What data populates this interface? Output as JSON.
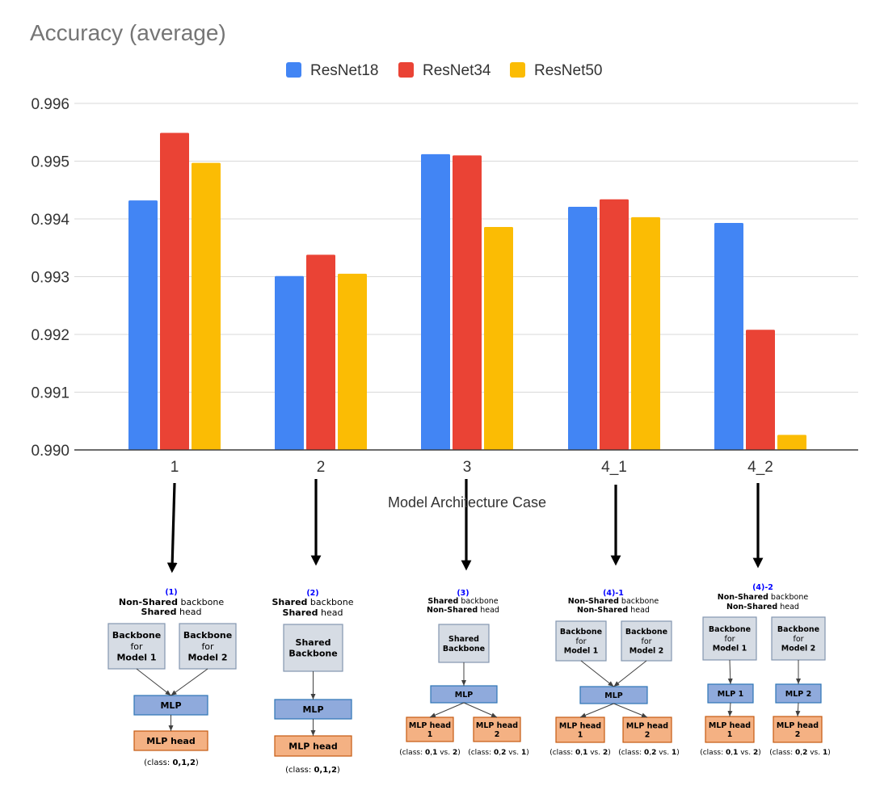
{
  "chart_data": {
    "type": "bar",
    "title": "Accuracy (average)",
    "xlabel": "Model Architecture Case",
    "ylabel": "",
    "categories": [
      "1",
      "2",
      "3",
      "4_1",
      "4_2"
    ],
    "ylim": [
      0.99,
      0.996
    ],
    "yticks": [
      "0.990",
      "0.991",
      "0.992",
      "0.993",
      "0.994",
      "0.995",
      "0.996"
    ],
    "grid": true,
    "legend_position": "top-center",
    "series": [
      {
        "name": "ResNet18",
        "color": "#4285F4",
        "values": [
          0.99432,
          0.99301,
          0.99512,
          0.99421,
          0.99393
        ]
      },
      {
        "name": "ResNet34",
        "color": "#EA4335",
        "values": [
          0.99549,
          0.99338,
          0.9951,
          0.99434,
          0.99208
        ]
      },
      {
        "name": "ResNet50",
        "color": "#FBBC04",
        "values": [
          0.99497,
          0.99305,
          0.99386,
          0.99403,
          0.99026
        ]
      }
    ]
  },
  "diagrams": [
    {
      "case_label": "(1)",
      "backbone_line": [
        {
          "text": "Non-Shared",
          "bold": true
        },
        {
          "text": " backbone",
          "bold": false
        }
      ],
      "head_line": [
        {
          "text": "Shared",
          "bold": true
        },
        {
          "text": " head",
          "bold": false
        }
      ],
      "backbones": [
        {
          "lines": [
            {
              "text": "Backbone",
              "bold": true
            },
            {
              "text": "for",
              "bold": false
            },
            {
              "text": "Model 1",
              "bold": true
            }
          ]
        },
        {
          "lines": [
            {
              "text": "Backbone",
              "bold": true
            },
            {
              "text": "for",
              "bold": false
            },
            {
              "text": "Model 2",
              "bold": true
            }
          ]
        }
      ],
      "mlps": [
        "MLP"
      ],
      "heads": [
        {
          "lines": [
            "MLP head"
          ]
        }
      ],
      "classes": [
        [
          {
            "text": "(class: ",
            "bold": false
          },
          {
            "text": "0,1,2",
            "bold": true
          },
          {
            "text": ")",
            "bold": false
          }
        ]
      ]
    },
    {
      "case_label": "(2)",
      "backbone_line": [
        {
          "text": "Shared",
          "bold": true
        },
        {
          "text": " backbone",
          "bold": false
        }
      ],
      "head_line": [
        {
          "text": "Shared",
          "bold": true
        },
        {
          "text": " head",
          "bold": false
        }
      ],
      "backbones": [
        {
          "lines": [
            {
              "text": "Shared",
              "bold": true
            },
            {
              "text": "Backbone",
              "bold": true
            }
          ]
        }
      ],
      "mlps": [
        "MLP"
      ],
      "heads": [
        {
          "lines": [
            "MLP head"
          ]
        }
      ],
      "classes": [
        [
          {
            "text": "(class: ",
            "bold": false
          },
          {
            "text": "0,1,2",
            "bold": true
          },
          {
            "text": ")",
            "bold": false
          }
        ]
      ]
    },
    {
      "case_label": "(3)",
      "backbone_line": [
        {
          "text": "Shared",
          "bold": true
        },
        {
          "text": " backbone",
          "bold": false
        }
      ],
      "head_line": [
        {
          "text": "Non-Shared",
          "bold": true
        },
        {
          "text": " head",
          "bold": false
        }
      ],
      "backbones": [
        {
          "lines": [
            {
              "text": "Shared",
              "bold": true
            },
            {
              "text": "Backbone",
              "bold": true
            }
          ]
        }
      ],
      "mlps": [
        "MLP"
      ],
      "heads": [
        {
          "lines": [
            "MLP head",
            "1"
          ]
        },
        {
          "lines": [
            "MLP head",
            "2"
          ]
        }
      ],
      "classes": [
        [
          {
            "text": "(class: ",
            "bold": false
          },
          {
            "text": "0",
            "bold": true
          },
          {
            "text": ",",
            "bold": false
          },
          {
            "text": "1",
            "bold": true
          },
          {
            "text": " vs. ",
            "bold": false
          },
          {
            "text": "2",
            "bold": true
          },
          {
            "text": ")",
            "bold": false
          }
        ],
        [
          {
            "text": "(class: ",
            "bold": false
          },
          {
            "text": "0",
            "bold": true
          },
          {
            "text": ",",
            "bold": false
          },
          {
            "text": "2",
            "bold": true
          },
          {
            "text": " vs. ",
            "bold": false
          },
          {
            "text": "1",
            "bold": true
          },
          {
            "text": ")",
            "bold": false
          }
        ]
      ]
    },
    {
      "case_label": "(4)-1",
      "backbone_line": [
        {
          "text": "Non-Shared",
          "bold": true
        },
        {
          "text": " backbone",
          "bold": false
        }
      ],
      "head_line": [
        {
          "text": "Non-Shared",
          "bold": true
        },
        {
          "text": " head",
          "bold": false
        }
      ],
      "backbones": [
        {
          "lines": [
            {
              "text": "Backbone",
              "bold": true
            },
            {
              "text": "for",
              "bold": false
            },
            {
              "text": "Model 1",
              "bold": true
            }
          ]
        },
        {
          "lines": [
            {
              "text": "Backbone",
              "bold": true
            },
            {
              "text": "for",
              "bold": false
            },
            {
              "text": "Model 2",
              "bold": true
            }
          ]
        }
      ],
      "mlps": [
        "MLP"
      ],
      "heads": [
        {
          "lines": [
            "MLP head",
            "1"
          ]
        },
        {
          "lines": [
            "MLP head",
            "2"
          ]
        }
      ],
      "classes": [
        [
          {
            "text": "(class: ",
            "bold": false
          },
          {
            "text": "0",
            "bold": true
          },
          {
            "text": ",",
            "bold": false
          },
          {
            "text": "1",
            "bold": true
          },
          {
            "text": " vs. ",
            "bold": false
          },
          {
            "text": "2",
            "bold": true
          },
          {
            "text": ")",
            "bold": false
          }
        ],
        [
          {
            "text": "(class: ",
            "bold": false
          },
          {
            "text": "0",
            "bold": true
          },
          {
            "text": ",",
            "bold": false
          },
          {
            "text": "2",
            "bold": true
          },
          {
            "text": " vs. ",
            "bold": false
          },
          {
            "text": "1",
            "bold": true
          },
          {
            "text": ")",
            "bold": false
          }
        ]
      ]
    },
    {
      "case_label": "(4)-2",
      "backbone_line": [
        {
          "text": "Non-Shared",
          "bold": true
        },
        {
          "text": " backbone",
          "bold": false
        }
      ],
      "head_line": [
        {
          "text": "Non-Shared",
          "bold": true
        },
        {
          "text": " head",
          "bold": false
        }
      ],
      "backbones": [
        {
          "lines": [
            {
              "text": "Backbone",
              "bold": true
            },
            {
              "text": "for",
              "bold": false
            },
            {
              "text": "Model 1",
              "bold": true
            }
          ]
        },
        {
          "lines": [
            {
              "text": "Backbone",
              "bold": true
            },
            {
              "text": "for",
              "bold": false
            },
            {
              "text": "Model 2",
              "bold": true
            }
          ]
        }
      ],
      "mlps": [
        "MLP 1",
        "MLP 2"
      ],
      "heads": [
        {
          "lines": [
            "MLP head",
            "1"
          ]
        },
        {
          "lines": [
            "MLP head",
            "2"
          ]
        }
      ],
      "classes": [
        [
          {
            "text": "(class: ",
            "bold": false
          },
          {
            "text": "0",
            "bold": true
          },
          {
            "text": ",",
            "bold": false
          },
          {
            "text": "1",
            "bold": true
          },
          {
            "text": " vs. ",
            "bold": false
          },
          {
            "text": "2",
            "bold": true
          },
          {
            "text": ")",
            "bold": false
          }
        ],
        [
          {
            "text": "(class: ",
            "bold": false
          },
          {
            "text": "0",
            "bold": true
          },
          {
            "text": ",",
            "bold": false
          },
          {
            "text": "2",
            "bold": true
          },
          {
            "text": " vs. ",
            "bold": false
          },
          {
            "text": "1",
            "bold": true
          },
          {
            "text": ")",
            "bold": false
          }
        ]
      ]
    }
  ],
  "colors": {
    "backbone_fill": "#D6DCE4",
    "backbone_stroke": "#8497B0",
    "mlp_fill": "#8FAADC",
    "mlp_stroke": "#2E75B6",
    "head_fill": "#F4B183",
    "head_stroke": "#C55A11",
    "case_label": "#0000FF"
  }
}
